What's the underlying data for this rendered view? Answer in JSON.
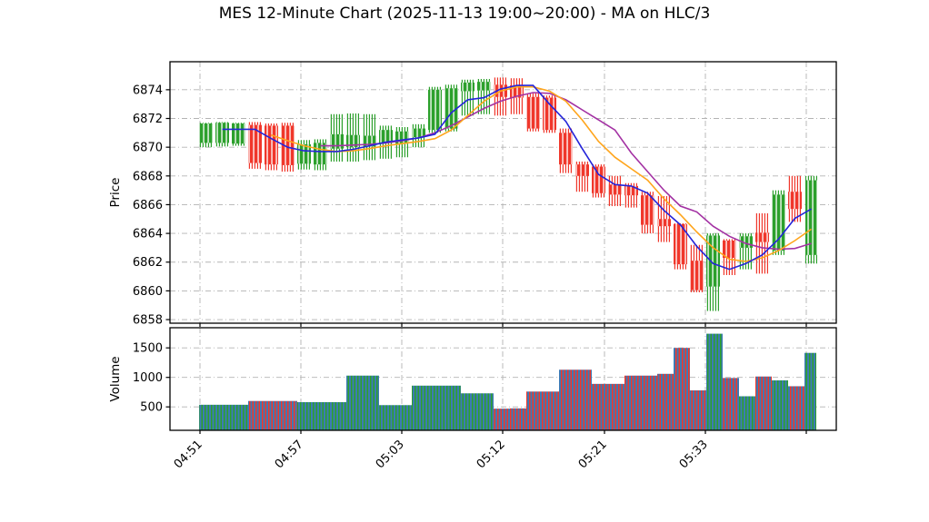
{
  "title": "MES 12-Minute Chart (2025-11-13 19:00~20:00) - MA on HLC/3",
  "chart_data": {
    "type": "candlestick",
    "panels": [
      "price",
      "volume"
    ],
    "price_axis": {
      "label": "Price",
      "ticks": [
        6858,
        6860,
        6862,
        6864,
        6866,
        6868,
        6870,
        6872,
        6874
      ],
      "range": [
        6857.75,
        6875.95
      ]
    },
    "volume_axis": {
      "label": "Volume",
      "ticks": [
        500,
        1000,
        1500
      ],
      "range": [
        0,
        1848
      ]
    },
    "x_tick_labels": [
      "04:51",
      "04:57",
      "05:03",
      "05:12",
      "05:21",
      "05:33",
      ""
    ],
    "grid": true,
    "legend": "none",
    "colors": {
      "up": "#2ca02c",
      "down": "#f0372b",
      "volume_base": "#3d7ab5",
      "ma_fast": "#2424d9",
      "ma_medium": "#ffa51c",
      "ma_slow": "#a331a3",
      "grid": "#b3b3b3",
      "axis": "#000000"
    },
    "candles": [
      {
        "o": 6870.3,
        "h": 6871.7,
        "l": 6870.0,
        "c": 6871.65,
        "v": 536
      },
      {
        "o": 6870.3,
        "h": 6871.75,
        "l": 6870.05,
        "c": 6871.7,
        "v": 536
      },
      {
        "o": 6870.25,
        "h": 6871.7,
        "l": 6870.1,
        "c": 6871.65,
        "v": 536
      },
      {
        "o": 6871.55,
        "h": 6871.75,
        "l": 6868.5,
        "c": 6868.9,
        "v": 600
      },
      {
        "o": 6871.5,
        "h": 6871.65,
        "l": 6868.4,
        "c": 6868.8,
        "v": 600
      },
      {
        "o": 6871.5,
        "h": 6871.7,
        "l": 6868.3,
        "c": 6868.75,
        "v": 600
      },
      {
        "o": 6868.85,
        "h": 6870.5,
        "l": 6868.45,
        "c": 6870.2,
        "v": 580
      },
      {
        "o": 6868.8,
        "h": 6870.55,
        "l": 6868.4,
        "c": 6870.3,
        "v": 580
      },
      {
        "o": 6869.9,
        "h": 6872.3,
        "l": 6869.0,
        "c": 6870.9,
        "v": 580
      },
      {
        "o": 6870.0,
        "h": 6872.35,
        "l": 6869.0,
        "c": 6870.85,
        "v": 1030
      },
      {
        "o": 6870.05,
        "h": 6872.3,
        "l": 6869.1,
        "c": 6870.8,
        "v": 1030
      },
      {
        "o": 6870.3,
        "h": 6871.5,
        "l": 6869.2,
        "c": 6871.2,
        "v": 530
      },
      {
        "o": 6870.25,
        "h": 6871.4,
        "l": 6869.3,
        "c": 6871.1,
        "v": 530
      },
      {
        "o": 6870.7,
        "h": 6871.6,
        "l": 6870.0,
        "c": 6871.3,
        "v": 860
      },
      {
        "o": 6871.2,
        "h": 6874.2,
        "l": 6871.0,
        "c": 6874.0,
        "v": 860
      },
      {
        "o": 6871.3,
        "h": 6874.35,
        "l": 6871.1,
        "c": 6874.1,
        "v": 860
      },
      {
        "o": 6873.9,
        "h": 6874.7,
        "l": 6872.2,
        "c": 6874.5,
        "v": 730
      },
      {
        "o": 6873.95,
        "h": 6874.75,
        "l": 6872.3,
        "c": 6874.55,
        "v": 730
      },
      {
        "o": 6874.35,
        "h": 6874.85,
        "l": 6872.2,
        "c": 6873.5,
        "v": 470
      },
      {
        "o": 6874.3,
        "h": 6874.8,
        "l": 6872.3,
        "c": 6873.45,
        "v": 475
      },
      {
        "o": 6873.5,
        "h": 6873.75,
        "l": 6871.1,
        "c": 6871.3,
        "v": 760
      },
      {
        "o": 6873.45,
        "h": 6873.6,
        "l": 6871.0,
        "c": 6871.2,
        "v": 760
      },
      {
        "o": 6871.0,
        "h": 6871.3,
        "l": 6868.2,
        "c": 6868.8,
        "v": 1130
      },
      {
        "o": 6868.8,
        "h": 6869.0,
        "l": 6866.9,
        "c": 6868.0,
        "v": 1130
      },
      {
        "o": 6868.65,
        "h": 6868.8,
        "l": 6866.5,
        "c": 6866.8,
        "v": 890
      },
      {
        "o": 6867.4,
        "h": 6868.0,
        "l": 6865.9,
        "c": 6866.7,
        "v": 890
      },
      {
        "o": 6867.3,
        "h": 6867.5,
        "l": 6865.8,
        "c": 6866.65,
        "v": 1030
      },
      {
        "o": 6866.65,
        "h": 6866.9,
        "l": 6864.0,
        "c": 6864.6,
        "v": 1030
      },
      {
        "o": 6865.0,
        "h": 6866.6,
        "l": 6863.4,
        "c": 6864.5,
        "v": 1060
      },
      {
        "o": 6864.65,
        "h": 6864.7,
        "l": 6861.5,
        "c": 6861.85,
        "v": 1500
      },
      {
        "o": 6862.1,
        "h": 6863.2,
        "l": 6859.9,
        "c": 6860.05,
        "v": 780
      },
      {
        "o": 6860.3,
        "h": 6864.0,
        "l": 6858.6,
        "c": 6863.85,
        "v": 1740
      },
      {
        "o": 6863.5,
        "h": 6863.6,
        "l": 6861.1,
        "c": 6862.3,
        "v": 990
      },
      {
        "o": 6863.0,
        "h": 6864.0,
        "l": 6861.5,
        "c": 6863.8,
        "v": 680
      },
      {
        "o": 6864.05,
        "h": 6865.4,
        "l": 6861.2,
        "c": 6863.4,
        "v": 1015
      },
      {
        "o": 6862.8,
        "h": 6867.0,
        "l": 6862.5,
        "c": 6866.7,
        "v": 950
      },
      {
        "o": 6866.9,
        "h": 6868.0,
        "l": 6864.8,
        "c": 6865.7,
        "v": 850
      },
      {
        "o": 6862.5,
        "h": 6868.0,
        "l": 6861.9,
        "c": 6867.7,
        "v": 1415
      }
    ],
    "ma_lines": [
      {
        "name": "ma-fast-blue",
        "values": [
          null,
          6871.25,
          6871.25,
          6871.25,
          6870.6,
          6870.0,
          6869.75,
          6869.7,
          6869.7,
          6869.85,
          6870.1,
          6870.35,
          6870.5,
          6870.65,
          6870.9,
          6872.4,
          6873.3,
          6873.45,
          6874.05,
          6874.3,
          6874.3,
          6873.0,
          6871.8,
          6869.9,
          6868.1,
          6867.4,
          6867.3,
          6866.8,
          6865.6,
          6864.6,
          6863.1,
          6861.9,
          6861.5,
          6861.9,
          6862.5,
          6863.6,
          6865.05,
          6865.7
        ]
      },
      {
        "name": "ma-medium-orange",
        "values": [
          null,
          null,
          null,
          null,
          6870.85,
          6870.45,
          6870.1,
          6869.85,
          6869.7,
          6869.75,
          6869.9,
          6870.1,
          6870.25,
          6870.4,
          6870.6,
          6871.2,
          6872.2,
          6873.2,
          6873.9,
          6874.2,
          6874.2,
          6873.9,
          6873.2,
          6871.9,
          6870.4,
          6869.3,
          6868.5,
          6867.7,
          6866.4,
          6865.3,
          6864.1,
          6863.0,
          6862.2,
          6862.05,
          6862.3,
          6862.8,
          6863.5,
          6864.3
        ]
      },
      {
        "name": "ma-slow-purple",
        "values": [
          null,
          null,
          null,
          null,
          null,
          null,
          null,
          6870.1,
          6870.1,
          6870.15,
          6870.2,
          6870.3,
          6870.45,
          6870.65,
          6871.0,
          6871.5,
          6872.1,
          6872.7,
          6873.2,
          6873.55,
          6873.8,
          6873.75,
          6873.3,
          6872.6,
          6871.9,
          6871.2,
          6869.6,
          6868.3,
          6867.0,
          6865.9,
          6865.5,
          6864.5,
          6863.8,
          6863.3,
          6863.0,
          6862.9,
          6862.95,
          6863.3
        ]
      }
    ]
  }
}
